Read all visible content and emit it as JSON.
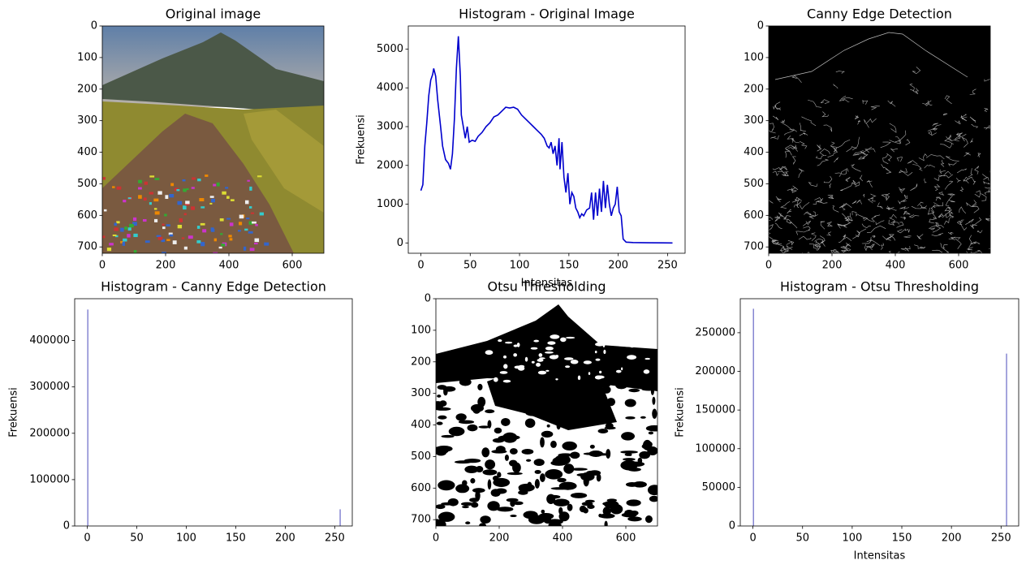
{
  "chart_data": [
    {
      "type": "image",
      "title": "Original image",
      "xlim": [
        0,
        700
      ],
      "ylim": [
        720,
        0
      ],
      "xticks": [
        0,
        200,
        400,
        600
      ],
      "yticks": [
        0,
        100,
        200,
        300,
        400,
        500,
        600,
        700
      ]
    },
    {
      "type": "line",
      "title": "Histogram - Original Image",
      "x_label": "Intensitas",
      "y_label": "Frekuensi",
      "x": [
        0,
        2,
        4,
        6,
        8,
        10,
        12,
        13,
        15,
        17,
        20,
        22,
        25,
        28,
        30,
        32,
        34,
        36,
        38,
        40,
        41,
        43,
        45,
        47,
        49,
        52,
        55,
        58,
        62,
        66,
        70,
        74,
        78,
        82,
        86,
        90,
        94,
        98,
        102,
        106,
        110,
        114,
        118,
        122,
        125,
        128,
        130,
        132,
        134,
        136,
        138,
        140,
        141,
        143,
        145,
        147,
        149,
        151,
        153,
        155,
        157,
        159,
        161,
        163,
        165,
        168,
        171,
        173,
        175,
        177,
        179,
        181,
        183,
        185,
        187,
        189,
        191,
        193,
        195,
        197,
        199,
        201,
        203,
        205,
        208,
        215,
        230,
        245,
        255
      ],
      "values": [
        1350,
        1500,
        2500,
        3100,
        3800,
        4200,
        4350,
        4500,
        4300,
        3700,
        3000,
        2500,
        2150,
        2050,
        1900,
        2300,
        3200,
        4500,
        5330,
        4300,
        3300,
        3000,
        2700,
        3000,
        2600,
        2650,
        2620,
        2750,
        2850,
        3000,
        3100,
        3250,
        3300,
        3400,
        3500,
        3480,
        3500,
        3450,
        3300,
        3200,
        3100,
        3000,
        2900,
        2800,
        2700,
        2500,
        2450,
        2600,
        2300,
        2500,
        2000,
        2700,
        1900,
        2600,
        1700,
        1300,
        1800,
        1000,
        1300,
        1200,
        900,
        800,
        650,
        750,
        700,
        850,
        900,
        1300,
        600,
        1300,
        700,
        1400,
        800,
        1600,
        900,
        1500,
        1000,
        700,
        900,
        1000,
        1450,
        800,
        700,
        100,
        20,
        10,
        5,
        3,
        0
      ],
      "color": "#0000cd",
      "xlim": [
        -12.75,
        267.75
      ],
      "ylim": [
        -266,
        5596
      ],
      "xticks": [
        0,
        50,
        100,
        150,
        200,
        250
      ],
      "yticks": [
        0,
        1000,
        2000,
        3000,
        4000,
        5000
      ]
    },
    {
      "type": "image",
      "title": "Canny Edge Detection",
      "xlim": [
        0,
        700
      ],
      "ylim": [
        720,
        0
      ],
      "xticks": [
        0,
        200,
        400,
        600
      ],
      "yticks": [
        0,
        100,
        200,
        300,
        400,
        500,
        600,
        700
      ]
    },
    {
      "type": "bar",
      "title": "Histogram - Canny Edge Detection",
      "y_label": "Frekuensi",
      "x": [
        0,
        255
      ],
      "values": [
        467000,
        36000
      ],
      "color": "#6b6bc8",
      "xlim": [
        -12.75,
        267.75
      ],
      "ylim": [
        0,
        490350
      ],
      "xticks": [
        0,
        50,
        100,
        150,
        200,
        250
      ],
      "yticks": [
        0,
        100000,
        200000,
        300000,
        400000
      ]
    },
    {
      "type": "image",
      "title": "Otsu Thresholding",
      "xlim": [
        0,
        700
      ],
      "ylim": [
        720,
        0
      ],
      "xticks": [
        0,
        200,
        400,
        600
      ],
      "yticks": [
        0,
        100,
        200,
        300,
        400,
        500,
        600,
        700
      ]
    },
    {
      "type": "bar",
      "title": "Histogram - Otsu Thresholding",
      "x_label": "Intensitas",
      "y_label": "Frekuensi",
      "x": [
        0,
        255
      ],
      "values": [
        281000,
        223000
      ],
      "color": "#6b6bc8",
      "xlim": [
        -12.75,
        267.75
      ],
      "ylim": [
        0,
        294000
      ],
      "xticks": [
        0,
        50,
        100,
        150,
        200,
        250
      ],
      "yticks": [
        0,
        50000,
        100000,
        150000,
        200000,
        250000
      ]
    }
  ]
}
